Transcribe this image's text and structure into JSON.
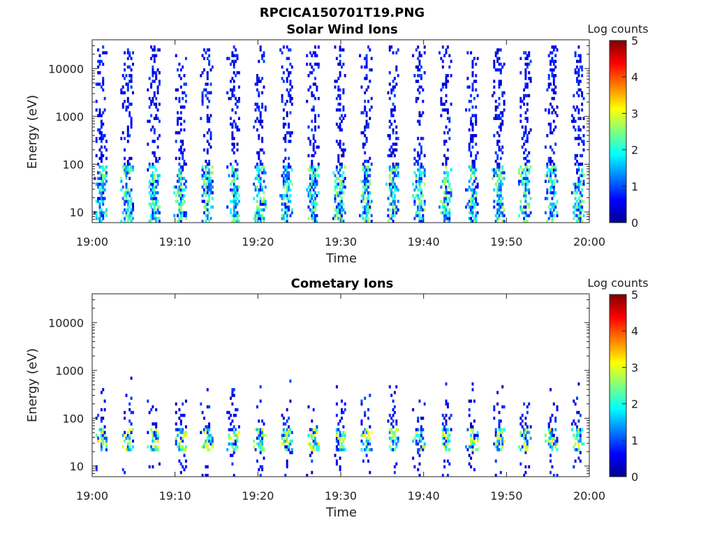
{
  "figure_title": "RPCICA150701T19.PNG",
  "chart_data": [
    {
      "type": "heatmap",
      "title": "Solar Wind Ions",
      "xlabel": "Time",
      "ylabel": "Energy (eV)",
      "x_ticks": [
        "19:00",
        "19:10",
        "19:20",
        "19:30",
        "19:40",
        "19:50",
        "20:00"
      ],
      "x_range": [
        "19:00",
        "20:00"
      ],
      "y_scale": "log",
      "y_ticks": [
        "10",
        "100",
        "1000",
        "10000"
      ],
      "y_range": [
        6,
        40000
      ],
      "colorbar": {
        "label": "Log counts",
        "range": [
          0,
          5
        ],
        "ticks": [
          "0",
          "1",
          "2",
          "3",
          "4",
          "5"
        ],
        "colormap": "jet"
      },
      "bursts": {
        "period_minutes": 3.2,
        "first_burst": "19:01",
        "count": 19,
        "energy_range_ev": [
          6,
          30000
        ],
        "peak_log_counts": 2.3,
        "dense_band_ev": [
          6,
          100
        ]
      }
    },
    {
      "type": "heatmap",
      "title": "Cometary Ions",
      "xlabel": "Time",
      "ylabel": "Energy (eV)",
      "x_ticks": [
        "19:00",
        "19:10",
        "19:20",
        "19:30",
        "19:40",
        "19:50",
        "20:00"
      ],
      "x_range": [
        "19:00",
        "20:00"
      ],
      "y_scale": "log",
      "y_ticks": [
        "10",
        "100",
        "1000",
        "10000"
      ],
      "y_range": [
        6,
        40000
      ],
      "colorbar": {
        "label": "Log counts",
        "range": [
          0,
          5
        ],
        "ticks": [
          "0",
          "1",
          "2",
          "3",
          "4",
          "5"
        ],
        "colormap": "jet"
      },
      "bursts": {
        "period_minutes": 3.2,
        "first_burst": "19:01",
        "count": 19,
        "energy_range_ev": [
          6,
          800
        ],
        "peak_log_counts": 2.8,
        "dense_band_ev": [
          20,
          60
        ]
      }
    }
  ]
}
